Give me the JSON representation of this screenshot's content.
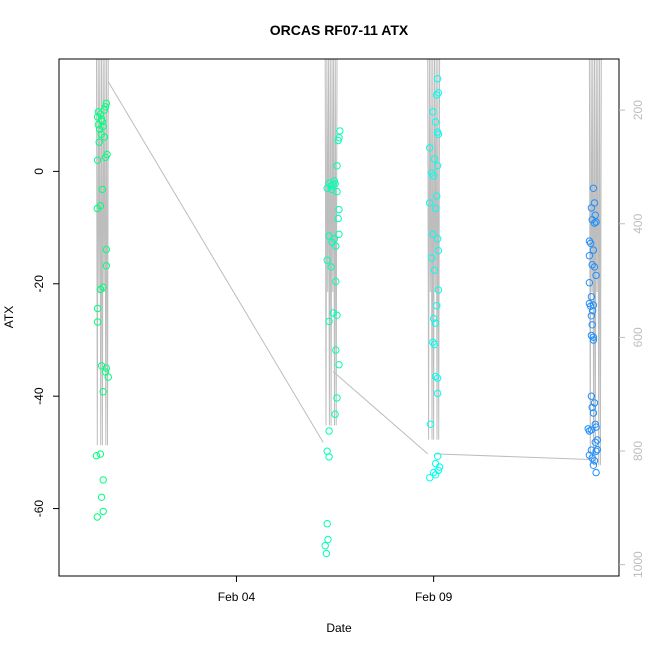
{
  "chart_data": {
    "type": "scatter",
    "title": "ORCAS RF07-11 ATX",
    "xlabel": "Date",
    "ylabel": "ATX",
    "x_ticks": [
      {
        "label": "Feb 04",
        "day": 4
      },
      {
        "label": "Feb 09",
        "day": 9
      }
    ],
    "xlim_day": [
      -0.5,
      13.7
    ],
    "ylim": [
      -72,
      20
    ],
    "y_ticks": [
      0,
      -20,
      -40,
      -60
    ],
    "y2_ticks": [
      200,
      400,
      600,
      800,
      1000
    ],
    "y2lim": [
      1020,
      110
    ],
    "grid": false,
    "altitude_color": "#bdbdbd",
    "series": [
      {
        "color": "#00ff7f",
        "x_day": 0.5,
        "points": [
          [
            0.0,
            10.6
          ],
          [
            0.05,
            10.2
          ],
          [
            -0.02,
            9.7
          ],
          [
            0.08,
            9.3
          ],
          [
            0.1,
            8.9
          ],
          [
            0.0,
            8.3
          ],
          [
            0.12,
            8.0
          ],
          [
            0.03,
            7.5
          ],
          [
            0.15,
            10.9
          ],
          [
            0.18,
            11.5
          ],
          [
            0.2,
            12.1
          ],
          [
            0.07,
            6.6
          ],
          [
            0.15,
            6.1
          ],
          [
            0.02,
            5.2
          ],
          [
            0.22,
            3.0
          ],
          [
            0.18,
            2.5
          ],
          [
            -0.02,
            2.0
          ],
          [
            0.1,
            -3.2
          ],
          [
            0.05,
            -6.1
          ],
          [
            -0.03,
            -6.6
          ],
          [
            0.2,
            -13.9
          ],
          [
            0.2,
            -16.8
          ],
          [
            0.12,
            -20.6
          ],
          [
            0.05,
            -21.0
          ],
          [
            -0.02,
            -24.4
          ],
          [
            -0.02,
            -26.8
          ],
          [
            0.08,
            -34.6
          ],
          [
            0.2,
            -35.0
          ],
          [
            0.18,
            -35.7
          ],
          [
            0.25,
            -36.6
          ],
          [
            0.12,
            -39.2
          ],
          [
            -0.05,
            -50.6
          ],
          [
            0.05,
            -50.3
          ],
          [
            0.12,
            -54.9
          ],
          [
            0.08,
            -58.0
          ],
          [
            0.12,
            -60.5
          ],
          [
            -0.03,
            -61.5
          ]
        ]
      },
      {
        "color": "#00ffb3",
        "x_day": 6.3,
        "points": [
          [
            0.05,
            -2.1
          ],
          [
            0.1,
            -2.6
          ],
          [
            0.15,
            -2.4
          ],
          [
            0.0,
            -3.0
          ],
          [
            0.12,
            -3.2
          ],
          [
            0.2,
            -2.2
          ],
          [
            0.18,
            -1.7
          ],
          [
            0.25,
            -3.6
          ],
          [
            0.3,
            6.0
          ],
          [
            0.32,
            7.2
          ],
          [
            0.28,
            5.5
          ],
          [
            0.25,
            1.0
          ],
          [
            0.3,
            -6.8
          ],
          [
            0.28,
            -8.4
          ],
          [
            0.05,
            -11.5
          ],
          [
            0.12,
            -12.6
          ],
          [
            0.18,
            -12.0
          ],
          [
            0.22,
            -13.3
          ],
          [
            0.3,
            -11.2
          ],
          [
            0.0,
            -15.8
          ],
          [
            0.1,
            -17.0
          ],
          [
            0.22,
            -19.6
          ],
          [
            0.15,
            -25.2
          ],
          [
            0.25,
            -25.6
          ],
          [
            0.05,
            -26.7
          ],
          [
            0.22,
            -31.8
          ],
          [
            0.3,
            -34.4
          ],
          [
            0.25,
            -40.3
          ],
          [
            0.2,
            -43.2
          ],
          [
            0.05,
            -46.2
          ],
          [
            0.0,
            -49.8
          ],
          [
            0.05,
            -50.8
          ],
          [
            0.0,
            -62.7
          ],
          [
            0.02,
            -65.5
          ],
          [
            -0.05,
            -66.6
          ],
          [
            -0.02,
            -68.0
          ]
        ]
      },
      {
        "color": "#00ffee",
        "x_day": 8.9,
        "points": [
          [
            0.2,
            16.5
          ],
          [
            0.22,
            14.0
          ],
          [
            0.18,
            13.6
          ],
          [
            0.08,
            10.6
          ],
          [
            0.15,
            8.8
          ],
          [
            0.2,
            7.0
          ],
          [
            0.22,
            6.6
          ],
          [
            0.0,
            4.2
          ],
          [
            0.12,
            2.2
          ],
          [
            0.2,
            1.0
          ],
          [
            0.05,
            -0.3
          ],
          [
            0.1,
            -0.8
          ],
          [
            0.18,
            -4.4
          ],
          [
            0.0,
            -5.6
          ],
          [
            0.15,
            -6.6
          ],
          [
            0.08,
            -11.2
          ],
          [
            0.2,
            -12.0
          ],
          [
            0.22,
            -14.1
          ],
          [
            0.05,
            -15.4
          ],
          [
            0.12,
            -17.6
          ],
          [
            0.22,
            -21.1
          ],
          [
            0.18,
            -23.9
          ],
          [
            0.1,
            -26.2
          ],
          [
            0.15,
            -27.0
          ],
          [
            0.08,
            -30.4
          ],
          [
            0.12,
            -30.8
          ],
          [
            0.15,
            -36.5
          ],
          [
            0.2,
            -36.8
          ],
          [
            0.2,
            -39.5
          ],
          [
            0.02,
            -45.0
          ],
          [
            0.2,
            -50.7
          ],
          [
            0.15,
            -52.0
          ],
          [
            0.25,
            -52.6
          ],
          [
            0.22,
            -53.2
          ],
          [
            0.1,
            -53.6
          ],
          [
            0.0,
            -54.5
          ],
          [
            0.15,
            -54.0
          ]
        ]
      },
      {
        "color": "#1e90ff",
        "x_day": 13.0,
        "points": [
          [
            0.05,
            -3.0
          ],
          [
            0.08,
            -5.6
          ],
          [
            0.0,
            -6.5
          ],
          [
            0.1,
            -7.8
          ],
          [
            0.02,
            -8.6
          ],
          [
            0.08,
            -9.2
          ],
          [
            0.12,
            -9.0
          ],
          [
            -0.05,
            -12.4
          ],
          [
            -0.02,
            -12.8
          ],
          [
            0.05,
            -14.0
          ],
          [
            -0.05,
            -15.0
          ],
          [
            0.02,
            -16.6
          ],
          [
            0.08,
            -17.0
          ],
          [
            0.12,
            -18.5
          ],
          [
            -0.05,
            -19.8
          ],
          [
            0.0,
            -22.3
          ],
          [
            0.05,
            -23.8
          ],
          [
            -0.02,
            -24.0
          ],
          [
            0.03,
            -24.8
          ],
          [
            -0.05,
            -23.5
          ],
          [
            0.0,
            -25.7
          ],
          [
            0.02,
            -27.3
          ],
          [
            0.05,
            -29.5
          ],
          [
            0.0,
            -29.2
          ],
          [
            0.05,
            -30.0
          ],
          [
            0.0,
            -40.0
          ],
          [
            0.08,
            -41.2
          ],
          [
            0.02,
            -42.0
          ],
          [
            0.05,
            -43.0
          ],
          [
            0.1,
            -45.0
          ],
          [
            -0.08,
            -45.8
          ],
          [
            -0.05,
            -46.2
          ],
          [
            0.0,
            -46.0
          ],
          [
            0.12,
            -45.5
          ],
          [
            0.15,
            -47.8
          ],
          [
            0.1,
            -48.2
          ],
          [
            0.15,
            -49.5
          ],
          [
            0.12,
            -49.8
          ],
          [
            0.0,
            -49.6
          ],
          [
            -0.05,
            -50.5
          ],
          [
            0.02,
            -51.0
          ],
          [
            0.08,
            -51.5
          ],
          [
            0.05,
            -52.3
          ],
          [
            0.12,
            -53.6
          ]
        ]
      }
    ]
  }
}
